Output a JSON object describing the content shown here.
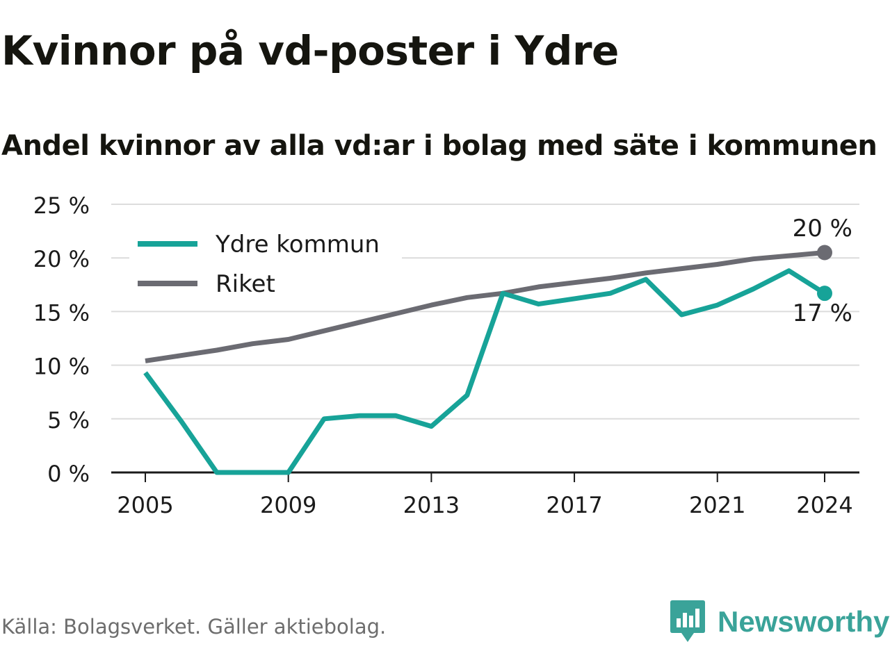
{
  "header": {
    "title": "Kvinnor på vd-poster i Ydre",
    "subtitle": "Andel kvinnor av alla vd:ar i bolag med säte i kommunen"
  },
  "footer": {
    "source": "Källa: Bolagsverket. Gäller aktiebolag.",
    "brand": "Newsworthy",
    "brand_icon": "bar-chart-speech-bubble-icon"
  },
  "colors": {
    "ydre": "#17a398",
    "riket": "#6b6b72",
    "grid": "#dcdcdc",
    "axis": "#1a1a1a",
    "brand": "#3aa399"
  },
  "chart_data": {
    "type": "line",
    "x": [
      2005,
      2006,
      2007,
      2008,
      2009,
      2010,
      2011,
      2012,
      2013,
      2014,
      2015,
      2016,
      2017,
      2018,
      2019,
      2020,
      2021,
      2022,
      2023,
      2024
    ],
    "series": [
      {
        "name": "Ydre kommun",
        "color": "#17a398",
        "values": [
          9.3,
          4.8,
          0,
          0,
          0,
          5.0,
          5.3,
          5.3,
          4.3,
          7.2,
          16.7,
          15.7,
          16.2,
          16.7,
          18.0,
          14.7,
          15.6,
          17.1,
          18.8,
          16.7
        ],
        "end_label": "17 %"
      },
      {
        "name": "Riket",
        "color": "#6b6b72",
        "values": [
          10.4,
          10.9,
          11.4,
          12.0,
          12.4,
          13.2,
          14.0,
          14.8,
          15.6,
          16.3,
          16.7,
          17.3,
          17.7,
          18.1,
          18.6,
          19.0,
          19.4,
          19.9,
          20.2,
          20.5
        ],
        "end_label": "20 %"
      }
    ],
    "xticks": [
      2005,
      2009,
      2013,
      2017,
      2021,
      2024
    ],
    "xtick_labels": [
      "2005",
      "2009",
      "2013",
      "2017",
      "2021",
      "2024"
    ],
    "yticks": [
      0,
      5,
      10,
      15,
      20,
      25
    ],
    "ytick_labels": [
      "0 %",
      "5 %",
      "10 %",
      "15 %",
      "20 %",
      "25 %"
    ],
    "ylim": [
      0,
      25
    ],
    "xlim": [
      2005,
      2024
    ],
    "grid": true,
    "legend": "top-left",
    "xlabel": "",
    "ylabel": ""
  }
}
